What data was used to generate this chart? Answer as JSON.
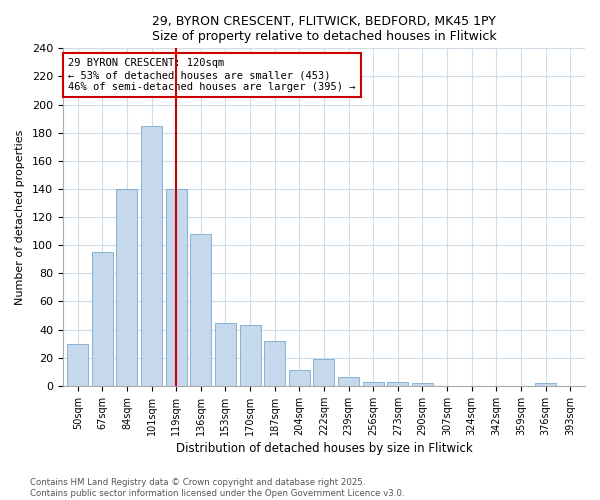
{
  "title1": "29, BYRON CRESCENT, FLITWICK, BEDFORD, MK45 1PY",
  "title2": "Size of property relative to detached houses in Flitwick",
  "xlabel": "Distribution of detached houses by size in Flitwick",
  "ylabel": "Number of detached properties",
  "categories": [
    "50sqm",
    "67sqm",
    "84sqm",
    "101sqm",
    "119sqm",
    "136sqm",
    "153sqm",
    "170sqm",
    "187sqm",
    "204sqm",
    "222sqm",
    "239sqm",
    "256sqm",
    "273sqm",
    "290sqm",
    "307sqm",
    "324sqm",
    "342sqm",
    "359sqm",
    "376sqm",
    "393sqm"
  ],
  "values": [
    30,
    95,
    140,
    185,
    140,
    108,
    45,
    43,
    32,
    11,
    19,
    6,
    3,
    3,
    2,
    0,
    0,
    0,
    0,
    2,
    0
  ],
  "bar_color": "#c5d8ec",
  "bar_edge_color": "#7aaacf",
  "vline_x_index": 4,
  "vline_color": "#cc0000",
  "annotation_text": "29 BYRON CRESCENT: 120sqm\n← 53% of detached houses are smaller (453)\n46% of semi-detached houses are larger (395) →",
  "annotation_box_color": "#ffffff",
  "annotation_box_edge": "#cc0000",
  "ylim": [
    0,
    240
  ],
  "yticks": [
    0,
    20,
    40,
    60,
    80,
    100,
    120,
    140,
    160,
    180,
    200,
    220,
    240
  ],
  "footer": "Contains HM Land Registry data © Crown copyright and database right 2025.\nContains public sector information licensed under the Open Government Licence v3.0.",
  "bg_color": "#ffffff",
  "plot_bg_color": "#ffffff",
  "grid_color": "#d0dce8"
}
